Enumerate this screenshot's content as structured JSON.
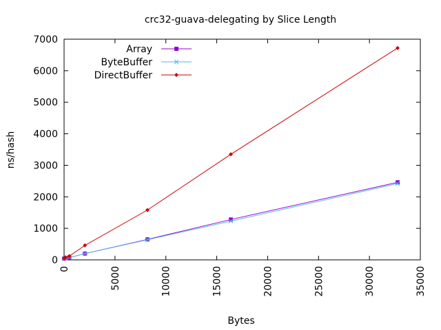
{
  "chart_data": {
    "type": "line",
    "title": "crc32-guava-delegating by Slice Length",
    "xlabel": "Bytes",
    "ylabel": "ns/hash",
    "xlim": [
      0,
      35000
    ],
    "ylim": [
      0,
      7000
    ],
    "xticks": [
      0,
      5000,
      10000,
      15000,
      20000,
      25000,
      30000,
      35000
    ],
    "yticks": [
      0,
      1000,
      2000,
      3000,
      4000,
      5000,
      6000,
      7000
    ],
    "x_tick_labels": [
      "0",
      "5000",
      "10000",
      "15000",
      "20000",
      "25000",
      "30000",
      "35000"
    ],
    "y_tick_labels": [
      "0",
      "1000",
      "2000",
      "3000",
      "4000",
      "5000",
      "6000",
      "7000"
    ],
    "legend_position": "top-left",
    "grid": false,
    "series": [
      {
        "name": "Array",
        "color": "#9400d3",
        "marker": "square",
        "points": [
          [
            8,
            40
          ],
          [
            32,
            45
          ],
          [
            128,
            55
          ],
          [
            512,
            70
          ],
          [
            2048,
            200
          ],
          [
            8192,
            650
          ],
          [
            16384,
            1280
          ],
          [
            32768,
            2460
          ]
        ]
      },
      {
        "name": "ByteBuffer",
        "color": "#56b4e9",
        "marker": "x",
        "points": [
          [
            8,
            45
          ],
          [
            32,
            50
          ],
          [
            128,
            60
          ],
          [
            512,
            75
          ],
          [
            2048,
            200
          ],
          [
            8192,
            640
          ],
          [
            16384,
            1230
          ],
          [
            32768,
            2420
          ]
        ]
      },
      {
        "name": "DirectBuffer",
        "color": "#cc0000",
        "marker": "diamond",
        "points": [
          [
            8,
            50
          ],
          [
            32,
            60
          ],
          [
            128,
            80
          ],
          [
            512,
            120
          ],
          [
            2048,
            460
          ],
          [
            8192,
            1580
          ],
          [
            16384,
            3350
          ],
          [
            32768,
            6720
          ]
        ]
      }
    ]
  }
}
